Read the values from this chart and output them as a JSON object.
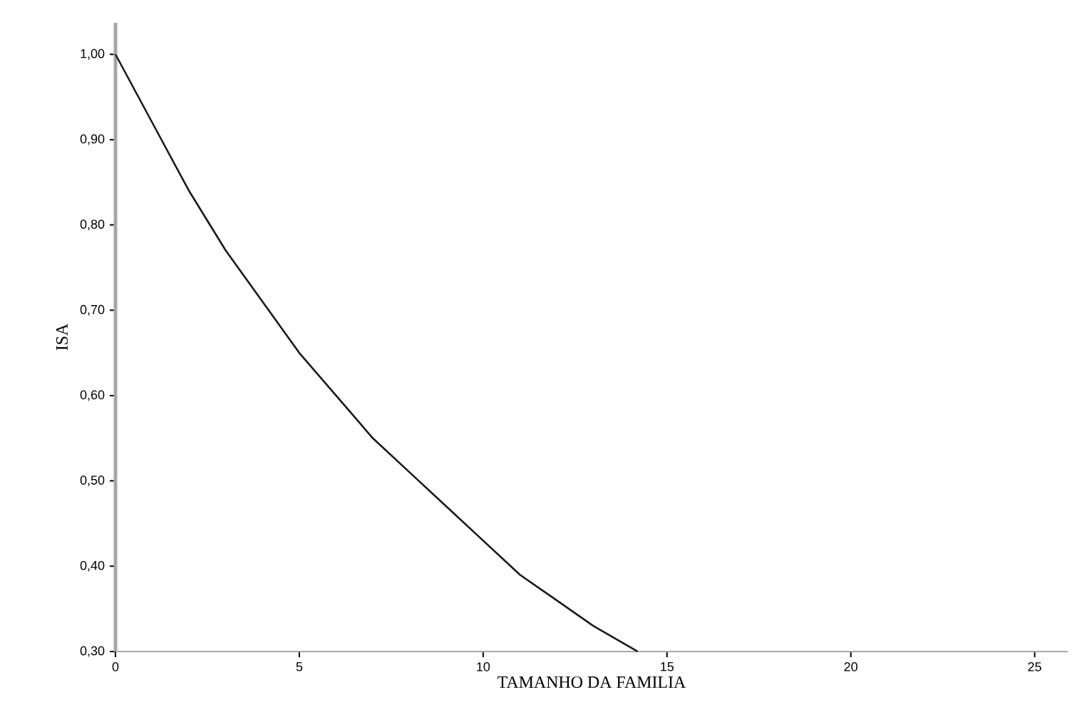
{
  "chart_data": {
    "type": "line",
    "xlabel": "TAMANHO DA FAMILIA",
    "ylabel": "ISA",
    "x": [
      0,
      1,
      2,
      3,
      4,
      5,
      6,
      7,
      8,
      9,
      10,
      11,
      12,
      13,
      14.2
    ],
    "series": [
      {
        "color": "#1a1a1a",
        "values": [
          1.0,
          0.92,
          0.84,
          0.77,
          0.71,
          0.65,
          0.6,
          0.55,
          0.51,
          0.47,
          0.43,
          0.39,
          0.36,
          0.33,
          0.3
        ]
      }
    ],
    "xlim": [
      0,
      25.9
    ],
    "ylim": [
      0.3,
      1.037
    ],
    "xticks": [
      0,
      5,
      10,
      15,
      20,
      25
    ],
    "yticks": [
      {
        "value": 0.3,
        "label": "0,30"
      },
      {
        "value": 0.4,
        "label": "0,40"
      },
      {
        "value": 0.5,
        "label": "0,50"
      },
      {
        "value": 0.6,
        "label": "0,60"
      },
      {
        "value": 0.7,
        "label": "0,70"
      },
      {
        "value": 0.8,
        "label": "0,80"
      },
      {
        "value": 0.9,
        "label": "0,90"
      },
      {
        "value": 1.0,
        "label": "1,00"
      }
    ],
    "marker": "none",
    "line_style": "solid"
  }
}
